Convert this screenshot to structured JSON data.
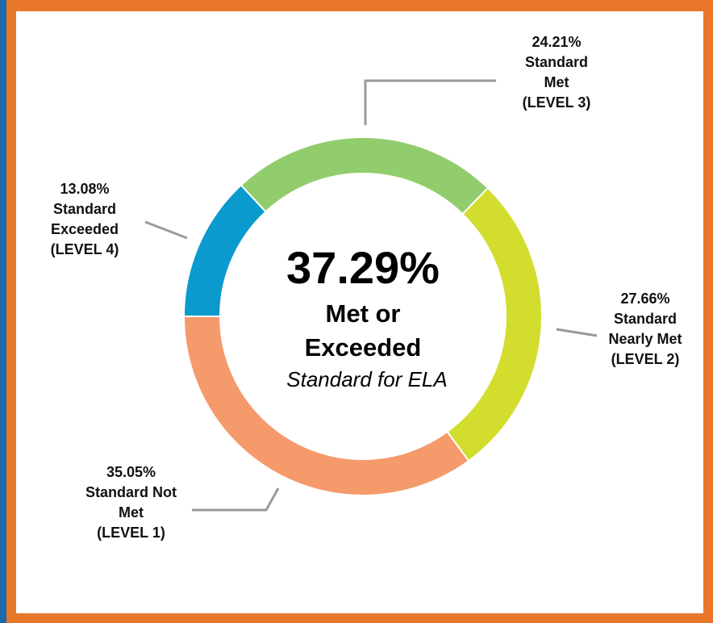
{
  "chart_data": {
    "type": "donut",
    "categories": [
      "Standard Exceeded",
      "Standard Met",
      "Standard Nearly Met",
      "Standard Not Met"
    ],
    "levels": [
      "(LEVEL 4)",
      "(LEVEL 3)",
      "(LEVEL 2)",
      "(LEVEL 1)"
    ],
    "values": [
      13.08,
      24.21,
      27.66,
      35.05
    ],
    "value_labels": [
      "13.08%",
      "24.21%",
      "27.66%",
      "35.05%"
    ],
    "colors": [
      "#0a9acd",
      "#91cd6c",
      "#d3dd2d",
      "#f59a6b"
    ],
    "center_text": "37.29%",
    "center_label": "Met or Exceeded",
    "center_note": "Standard for ELA"
  }
}
